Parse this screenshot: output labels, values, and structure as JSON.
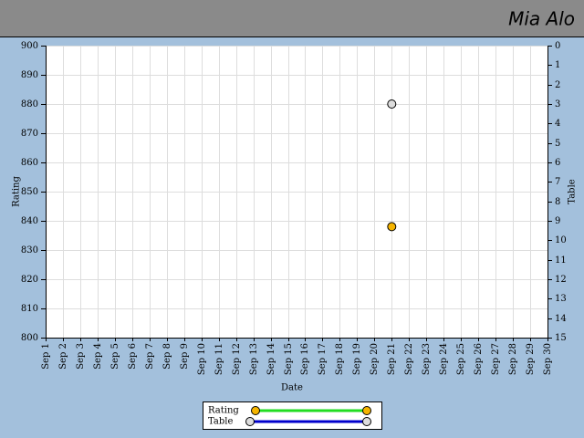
{
  "header": {
    "user": "Mia Alo"
  },
  "chart_data": {
    "type": "line",
    "x_label": "Date",
    "y_label": "Rating",
    "y2_label": "Table",
    "categories": [
      "Sep 1",
      "Sep 2",
      "Sep 3",
      "Sep 4",
      "Sep 5",
      "Sep 6",
      "Sep 7",
      "Sep 8",
      "Sep 9",
      "Sep 10",
      "Sep 11",
      "Sep 12",
      "Sep 13",
      "Sep 14",
      "Sep 15",
      "Sep 16",
      "Sep 17",
      "Sep 18",
      "Sep 19",
      "Sep 20",
      "Sep 21",
      "Sep 22",
      "Sep 23",
      "Sep 24",
      "Sep 25",
      "Sep 26",
      "Sep 27",
      "Sep 28",
      "Sep 29",
      "Sep 30"
    ],
    "series": [
      {
        "name": "Rating",
        "color": "#f5b400",
        "line_color": "#22dd22",
        "values": [
          null,
          null,
          null,
          null,
          null,
          null,
          null,
          null,
          null,
          null,
          null,
          null,
          null,
          null,
          null,
          null,
          null,
          null,
          null,
          null,
          838,
          null,
          null,
          null,
          null,
          null,
          null,
          null,
          null,
          null
        ]
      },
      {
        "name": "Table",
        "color": "#dddddd",
        "line_color": "#0000cc",
        "axis": "y2",
        "values": [
          null,
          null,
          null,
          null,
          null,
          null,
          null,
          null,
          null,
          null,
          null,
          null,
          null,
          null,
          null,
          null,
          null,
          null,
          null,
          null,
          3,
          null,
          null,
          null,
          null,
          null,
          null,
          null,
          null,
          null
        ]
      }
    ],
    "ylim": [
      800,
      900
    ],
    "yticks": [
      800,
      810,
      820,
      830,
      840,
      850,
      860,
      870,
      880,
      890,
      900
    ],
    "y2lim": [
      15,
      0
    ],
    "y2ticks": [
      0,
      1,
      2,
      3,
      4,
      5,
      6,
      7,
      8,
      9,
      10,
      11,
      12,
      13,
      14,
      15
    ],
    "grid": true
  }
}
